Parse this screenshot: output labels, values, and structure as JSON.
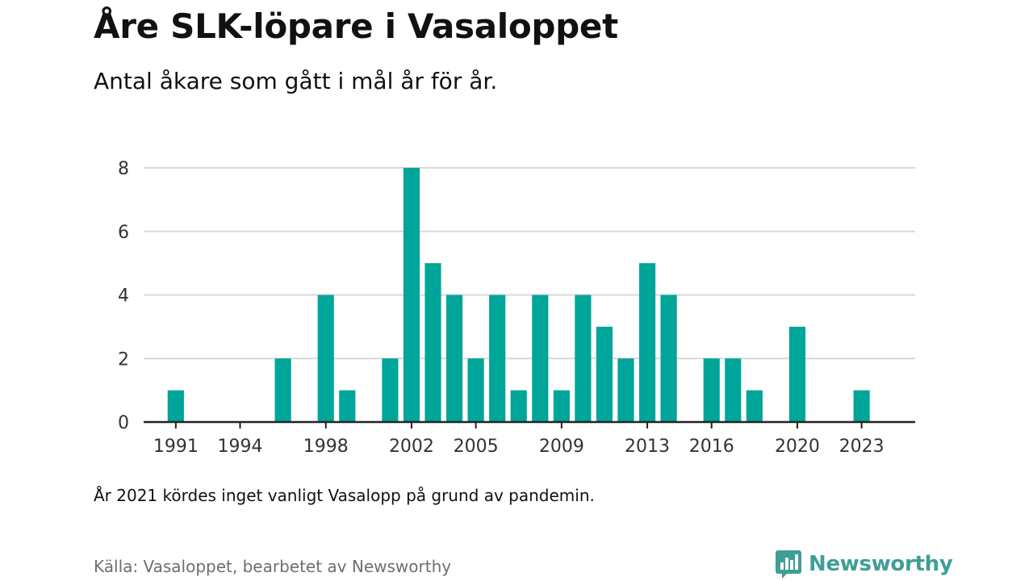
{
  "title": "Åre SLK-löpare i Vasaloppet",
  "subtitle": "Antal åkare som gått i mål år för år.",
  "note": "År 2021 kördes inget vanligt Vasalopp på grund av pandemin.",
  "source": "Källa: Vasaloppet, bearbetet av Newsworthy",
  "brand": {
    "name": "Newsworthy",
    "icon": "bar-chart-speech-bubble-icon",
    "color": "#3f9e97"
  },
  "colors": {
    "bar": "#00a59a",
    "grid": "#d9d9d9",
    "axis": "#222222",
    "tick_text": "#333333"
  },
  "chart_data": {
    "type": "bar",
    "title": "Åre SLK-löpare i Vasaloppet",
    "subtitle": "Antal åkare som gått i mål år för år.",
    "xlabel": "",
    "ylabel": "",
    "x": [
      1991,
      1992,
      1993,
      1994,
      1995,
      1996,
      1997,
      1998,
      1999,
      2000,
      2001,
      2002,
      2003,
      2004,
      2005,
      2006,
      2007,
      2008,
      2009,
      2010,
      2011,
      2012,
      2013,
      2014,
      2015,
      2016,
      2017,
      2018,
      2019,
      2020,
      2021,
      2022,
      2023
    ],
    "values": [
      1,
      0,
      0,
      0,
      0,
      2,
      0,
      4,
      1,
      0,
      2,
      8,
      5,
      4,
      2,
      4,
      1,
      4,
      1,
      4,
      3,
      2,
      5,
      4,
      0,
      2,
      2,
      1,
      0,
      3,
      0,
      0,
      1
    ],
    "x_ticks": [
      1991,
      1994,
      1998,
      2002,
      2005,
      2009,
      2013,
      2016,
      2020,
      2023
    ],
    "y_ticks": [
      0,
      2,
      4,
      6,
      8
    ],
    "ylim": [
      0,
      8
    ],
    "xlim": [
      1989.5,
      2025.5
    ],
    "grid": true,
    "legend": "none"
  }
}
